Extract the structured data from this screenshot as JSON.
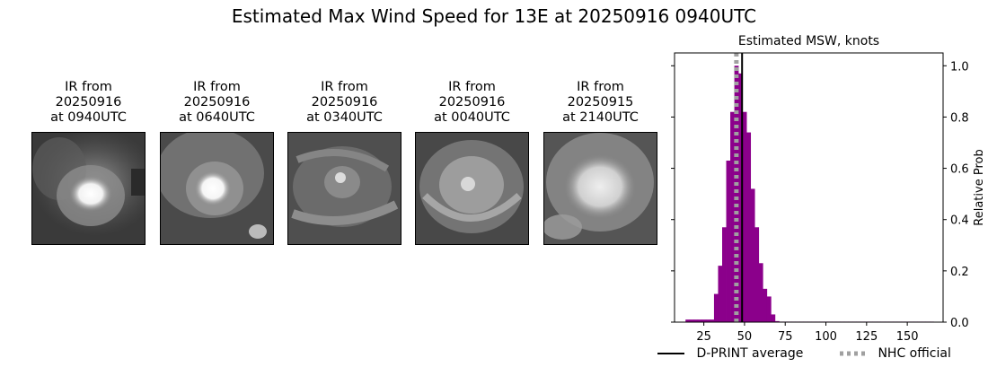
{
  "title": "Estimated Max Wind Speed for 13E at 20250916 0940UTC",
  "panels": [
    {
      "line1": "IR from",
      "line2": "20250916",
      "line3": "at 0940UTC"
    },
    {
      "line1": "IR from",
      "line2": "20250916",
      "line3": "at 0640UTC"
    },
    {
      "line1": "IR from",
      "line2": "20250916",
      "line3": "at 0340UTC"
    },
    {
      "line1": "IR from",
      "line2": "20250916",
      "line3": "at 0040UTC"
    },
    {
      "line1": "IR from",
      "line2": "20250915",
      "line3": "at 2140UTC"
    }
  ],
  "chart_data": {
    "type": "bar",
    "title": "Estimated MSW, knots",
    "xlabel": "",
    "ylabel": "Relative Prob",
    "xlim": [
      7,
      172
    ],
    "ylim": [
      0,
      1.05
    ],
    "xticks": [
      25,
      50,
      75,
      100,
      125,
      150
    ],
    "yticks": [
      "0.0",
      "0.2",
      "0.4",
      "0.6",
      "0.8",
      "1.0"
    ],
    "bin_width": 2.5,
    "bins": [
      {
        "x": 15,
        "value": 0.01
      },
      {
        "x": 17.5,
        "value": 0.01
      },
      {
        "x": 20,
        "value": 0.01
      },
      {
        "x": 22.5,
        "value": 0.01
      },
      {
        "x": 25,
        "value": 0.01
      },
      {
        "x": 27.5,
        "value": 0.01
      },
      {
        "x": 30,
        "value": 0.01
      },
      {
        "x": 32.5,
        "value": 0.11
      },
      {
        "x": 35,
        "value": 0.22
      },
      {
        "x": 37.5,
        "value": 0.37
      },
      {
        "x": 40,
        "value": 0.63
      },
      {
        "x": 42.5,
        "value": 0.82
      },
      {
        "x": 45,
        "value": 1.0
      },
      {
        "x": 47.5,
        "value": 0.97
      },
      {
        "x": 50,
        "value": 0.82
      },
      {
        "x": 52.5,
        "value": 0.74
      },
      {
        "x": 55,
        "value": 0.52
      },
      {
        "x": 57.5,
        "value": 0.37
      },
      {
        "x": 60,
        "value": 0.23
      },
      {
        "x": 62.5,
        "value": 0.13
      },
      {
        "x": 65,
        "value": 0.1
      },
      {
        "x": 67.5,
        "value": 0.03
      },
      {
        "x": 70,
        "value": 0.004
      },
      {
        "x": 72.5,
        "value": 0.002
      },
      {
        "x": 75,
        "value": 0.002
      },
      {
        "x": 77.5,
        "value": 0.002
      },
      {
        "x": 80,
        "value": 0.002
      },
      {
        "x": 82.5,
        "value": 0.002
      },
      {
        "x": 85,
        "value": 0.002
      },
      {
        "x": 87.5,
        "value": 0.002
      },
      {
        "x": 90,
        "value": 0.002
      },
      {
        "x": 92.5,
        "value": 0.002
      },
      {
        "x": 95,
        "value": 0.002
      },
      {
        "x": 97.5,
        "value": 0.002
      },
      {
        "x": 100,
        "value": 0.002
      },
      {
        "x": 102.5,
        "value": 0.002
      },
      {
        "x": 105,
        "value": 0.002
      },
      {
        "x": 107.5,
        "value": 0.002
      },
      {
        "x": 110,
        "value": 0.002
      },
      {
        "x": 112.5,
        "value": 0.002
      },
      {
        "x": 115,
        "value": 0.002
      },
      {
        "x": 117.5,
        "value": 0.002
      },
      {
        "x": 120,
        "value": 0.002
      },
      {
        "x": 122.5,
        "value": 0.002
      },
      {
        "x": 125,
        "value": 0.002
      },
      {
        "x": 127.5,
        "value": 0.002
      },
      {
        "x": 130,
        "value": 0.002
      },
      {
        "x": 132.5,
        "value": 0.002
      },
      {
        "x": 135,
        "value": 0.002
      },
      {
        "x": 137.5,
        "value": 0.002
      },
      {
        "x": 140,
        "value": 0.002
      },
      {
        "x": 142.5,
        "value": 0.002
      },
      {
        "x": 145,
        "value": 0.002
      },
      {
        "x": 147.5,
        "value": 0.002
      },
      {
        "x": 150,
        "value": 0.002
      },
      {
        "x": 152.5,
        "value": 0.002
      },
      {
        "x": 155,
        "value": 0.002
      },
      {
        "x": 157.5,
        "value": 0.002
      },
      {
        "x": 160,
        "value": 0.002
      },
      {
        "x": 162.5,
        "value": 0.002
      },
      {
        "x": 165,
        "value": 0.002
      }
    ],
    "dprint_average": 48.5,
    "nhc_official": 45,
    "bar_color": "#8b008b",
    "dprint_color": "#000000",
    "nhc_color": "#a0a0a0",
    "legend": {
      "dprint": "D-PRINT average",
      "nhc": "NHC official",
      "placement": "bottom"
    }
  }
}
